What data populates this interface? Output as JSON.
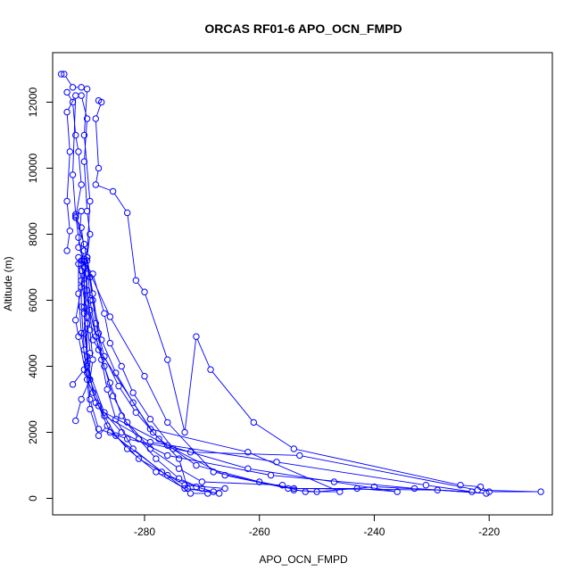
{
  "chart_data": {
    "type": "scatter",
    "title": "ORCAS RF01-6 APO_OCN_FMPD",
    "xlabel": "APO_OCN_FMPD",
    "ylabel": "Altitude (m)",
    "xlim": [
      -296,
      -209
    ],
    "ylim": [
      -500,
      13500
    ],
    "xticks": [
      -280,
      -260,
      -240,
      -220
    ],
    "yticks": [
      0,
      2000,
      4000,
      6000,
      8000,
      10000,
      12000
    ],
    "grid": false,
    "legend": "none",
    "color": "#0000ff",
    "series": [
      {
        "points": [
          [
            -294.5,
            12850
          ],
          [
            -294.0,
            12850
          ],
          [
            -292.5,
            12450
          ],
          [
            -291.0,
            12450
          ],
          [
            -290.0,
            12400
          ],
          [
            -290.5,
            11000
          ],
          [
            -289.5,
            9000
          ],
          [
            -290.0,
            7300
          ],
          [
            -289.5,
            6000
          ],
          [
            -288.0,
            4500
          ],
          [
            -286.0,
            3500
          ],
          [
            -284.0,
            2500
          ],
          [
            -281.0,
            1800
          ],
          [
            -278.0,
            1200
          ],
          [
            -274.0,
            600
          ],
          [
            -270.0,
            300
          ],
          [
            -269.0,
            150
          ],
          [
            -272.0,
            150
          ],
          [
            -286.0,
            2000
          ],
          [
            -289.0,
            3200
          ],
          [
            -290.5,
            5000
          ],
          [
            -290.0,
            6800
          ],
          [
            -290.5,
            7200
          ],
          [
            -286.0,
            5500
          ],
          [
            -280.0,
            3700
          ],
          [
            -276.0,
            2300
          ],
          [
            -268.0,
            800
          ],
          [
            -252.0,
            200
          ],
          [
            -246.0,
            200
          ],
          [
            -262.0,
            1400
          ],
          [
            -279.0,
            2100
          ],
          [
            -289.0,
            4800
          ],
          [
            -290.5,
            7200
          ]
        ]
      },
      {
        "points": [
          [
            -293.5,
            12300
          ],
          [
            -292.5,
            12000
          ],
          [
            -292.0,
            11000
          ],
          [
            -291.5,
            10500
          ],
          [
            -291.0,
            9500
          ],
          [
            -292.0,
            8500
          ],
          [
            -291.0,
            8200
          ],
          [
            -290.5,
            7500
          ],
          [
            -291.0,
            7200
          ],
          [
            -289.0,
            6800
          ],
          [
            -287.0,
            5600
          ],
          [
            -286.0,
            4700
          ],
          [
            -284.0,
            4000
          ],
          [
            -282.0,
            3200
          ],
          [
            -279.0,
            2400
          ],
          [
            -275.0,
            1500
          ],
          [
            -266.0,
            700
          ],
          [
            -255.0,
            300
          ],
          [
            -243.0,
            300
          ],
          [
            -236.0,
            200
          ],
          [
            -247.0,
            500
          ],
          [
            -262.0,
            900
          ],
          [
            -276.0,
            1600
          ],
          [
            -287.0,
            2600
          ],
          [
            -290.0,
            4000
          ],
          [
            -290.0,
            5300
          ],
          [
            -290.5,
            6500
          ],
          [
            -291.0,
            7100
          ]
        ]
      },
      {
        "points": [
          [
            -288.0,
            12050
          ],
          [
            -287.5,
            12000
          ],
          [
            -288.5,
            11500
          ],
          [
            -288.0,
            10000
          ],
          [
            -288.5,
            9500
          ],
          [
            -285.5,
            9300
          ],
          [
            -283.0,
            8650
          ],
          [
            -281.5,
            6600
          ],
          [
            -280.0,
            6250
          ],
          [
            -276.0,
            4200
          ],
          [
            -273.0,
            2000
          ],
          [
            -271.0,
            4900
          ],
          [
            -268.5,
            3900
          ],
          [
            -261.0,
            2300
          ],
          [
            -254.0,
            1500
          ],
          [
            -225.0,
            400
          ],
          [
            -221.5,
            350
          ],
          [
            -220.0,
            200
          ],
          [
            -211.0,
            200
          ],
          [
            -222.0,
            250
          ],
          [
            -253.0,
            1300
          ],
          [
            -272.0,
            1400
          ],
          [
            -283.0,
            1800
          ],
          [
            -288.0,
            2100
          ],
          [
            -289.5,
            3000
          ],
          [
            -290.0,
            4300
          ],
          [
            -290.5,
            5800
          ],
          [
            -290.5,
            7000
          ]
        ]
      },
      {
        "points": [
          [
            -291.0,
            12200
          ],
          [
            -290.0,
            11500
          ],
          [
            -290.5,
            10200
          ],
          [
            -290.0,
            8700
          ],
          [
            -289.5,
            8000
          ],
          [
            -290.0,
            7300
          ],
          [
            -289.0,
            6200
          ],
          [
            -288.0,
            5000
          ],
          [
            -287.5,
            4200
          ],
          [
            -286.5,
            3300
          ],
          [
            -285.0,
            2400
          ],
          [
            -282.0,
            1500
          ],
          [
            -277.0,
            800
          ],
          [
            -273.0,
            400
          ],
          [
            -266.0,
            300
          ],
          [
            -268.0,
            200
          ],
          [
            -271.0,
            350
          ],
          [
            -276.0,
            700
          ],
          [
            -281.0,
            1200
          ],
          [
            -285.0,
            1900
          ],
          [
            -288.0,
            2800
          ],
          [
            -290.0,
            3600
          ],
          [
            -291.5,
            4900
          ],
          [
            -292.0,
            5400
          ],
          [
            -291.0,
            6400
          ],
          [
            -290.5,
            7000
          ]
        ]
      },
      {
        "points": [
          [
            -293.5,
            7500
          ],
          [
            -293.0,
            8100
          ],
          [
            -293.5,
            9000
          ],
          [
            -293.0,
            10500
          ],
          [
            -293.5,
            11700
          ],
          [
            -292.0,
            12200
          ],
          [
            -292.5,
            9800
          ],
          [
            -292.0,
            8600
          ],
          [
            -291.5,
            7900
          ],
          [
            -290.5,
            7000
          ],
          [
            -289.5,
            5700
          ],
          [
            -288.5,
            4900
          ],
          [
            -287.0,
            4000
          ],
          [
            -285.5,
            3100
          ],
          [
            -283.0,
            2300
          ],
          [
            -279.0,
            1500
          ],
          [
            -274.0,
            900
          ],
          [
            -270.0,
            500
          ],
          [
            -256.0,
            400
          ],
          [
            -254.0,
            250
          ],
          [
            -250.0,
            200
          ],
          [
            -240.0,
            350
          ],
          [
            -223.0,
            200
          ],
          [
            -231.0,
            400
          ],
          [
            -257.0,
            1100
          ],
          [
            -279.0,
            1700
          ],
          [
            -287.0,
            2500
          ],
          [
            -290.0,
            3800
          ],
          [
            -291.0,
            5000
          ],
          [
            -291.5,
            6200
          ],
          [
            -291.5,
            7300
          ]
        ]
      },
      {
        "points": [
          [
            -292.5,
            3450
          ],
          [
            -290.5,
            3900
          ],
          [
            -289.5,
            4400
          ],
          [
            -290.0,
            5500
          ],
          [
            -291.0,
            6600
          ],
          [
            -291.5,
            7100
          ],
          [
            -290.0,
            7200
          ],
          [
            -289.0,
            6000
          ],
          [
            -287.5,
            4800
          ],
          [
            -285.0,
            3800
          ],
          [
            -282.0,
            2900
          ],
          [
            -278.5,
            2000
          ],
          [
            -274.0,
            1200
          ],
          [
            -272.5,
            300
          ],
          [
            -267.0,
            150
          ],
          [
            -273.0,
            300
          ],
          [
            -278.0,
            800
          ],
          [
            -283.0,
            1500
          ],
          [
            -286.5,
            2200
          ],
          [
            -288.0,
            1900
          ],
          [
            -289.5,
            2700
          ],
          [
            -290.5,
            4500
          ],
          [
            -291.0,
            5800
          ],
          [
            -291.0,
            6900
          ]
        ]
      },
      {
        "points": [
          [
            -292.0,
            2350
          ],
          [
            -291.0,
            3000
          ],
          [
            -289.5,
            3600
          ],
          [
            -289.0,
            4200
          ],
          [
            -289.5,
            5100
          ],
          [
            -290.0,
            6300
          ],
          [
            -290.5,
            7250
          ],
          [
            -291.5,
            7600
          ],
          [
            -291.0,
            8700
          ],
          [
            -292.0,
            8550
          ],
          [
            -290.5,
            7700
          ],
          [
            -289.5,
            6700
          ],
          [
            -288.5,
            5300
          ],
          [
            -287.0,
            4300
          ],
          [
            -284.5,
            3400
          ],
          [
            -281.5,
            2600
          ],
          [
            -277.5,
            1800
          ],
          [
            -271.0,
            1000
          ],
          [
            -260.0,
            500
          ],
          [
            -254.0,
            300
          ],
          [
            -229.0,
            250
          ],
          [
            -220.5,
            150
          ],
          [
            -233.0,
            300
          ],
          [
            -258.0,
            700
          ],
          [
            -276.0,
            1300
          ],
          [
            -284.0,
            2000
          ],
          [
            -288.5,
            2900
          ],
          [
            -290.0,
            4100
          ],
          [
            -290.5,
            5600
          ],
          [
            -290.5,
            7000
          ]
        ]
      }
    ]
  }
}
